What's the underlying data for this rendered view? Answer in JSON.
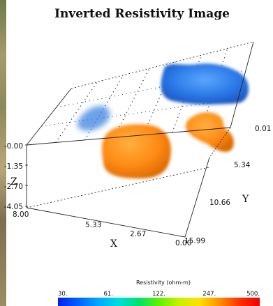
{
  "chart_data": {
    "type": "3d-volume",
    "title": "Inverted Resistivity Image",
    "axes": {
      "x": {
        "label": "X",
        "ticks": [
          "8.00",
          "5.33",
          "2.67",
          "0.00"
        ],
        "range": [
          0,
          8
        ]
      },
      "y": {
        "label": "Y",
        "ticks": [
          "0.01",
          "5.34",
          "10.66",
          "15.99"
        ],
        "range": [
          0.01,
          15.99
        ]
      },
      "z": {
        "label": "Z",
        "ticks": [
          "-0.00",
          "-1.35",
          "-2.70",
          "-4.05"
        ],
        "range": [
          -4.05,
          0
        ]
      }
    },
    "colorbar": {
      "title": "Resistivity (ohm-m)",
      "scale": "log",
      "tick_labels": [
        "30.",
        "61.",
        "122.",
        "247.",
        "500."
      ],
      "colors": [
        "#0022ee",
        "#0060ff",
        "#00a8ff",
        "#00dddd",
        "#00e070",
        "#60f000",
        "#c8f000",
        "#ffe000",
        "#ff9000",
        "#ff3000",
        "#ee0000"
      ]
    },
    "bodies": [
      {
        "name": "",
        "kind": "high",
        "color": "#ff8c1a",
        "description_value": "high resistivity anomaly"
      },
      {
        "name": "",
        "kind": "high",
        "color": "#ff8c1a",
        "description_value": "high resistivity anomaly"
      },
      {
        "name": "",
        "kind": "low",
        "color": "#2f7de0",
        "description_value": "low resistivity anomaly"
      },
      {
        "name": "",
        "kind": "low",
        "color": "#2f7de0",
        "description_value": "low resistivity anomaly"
      }
    ],
    "grid": "dotted"
  }
}
